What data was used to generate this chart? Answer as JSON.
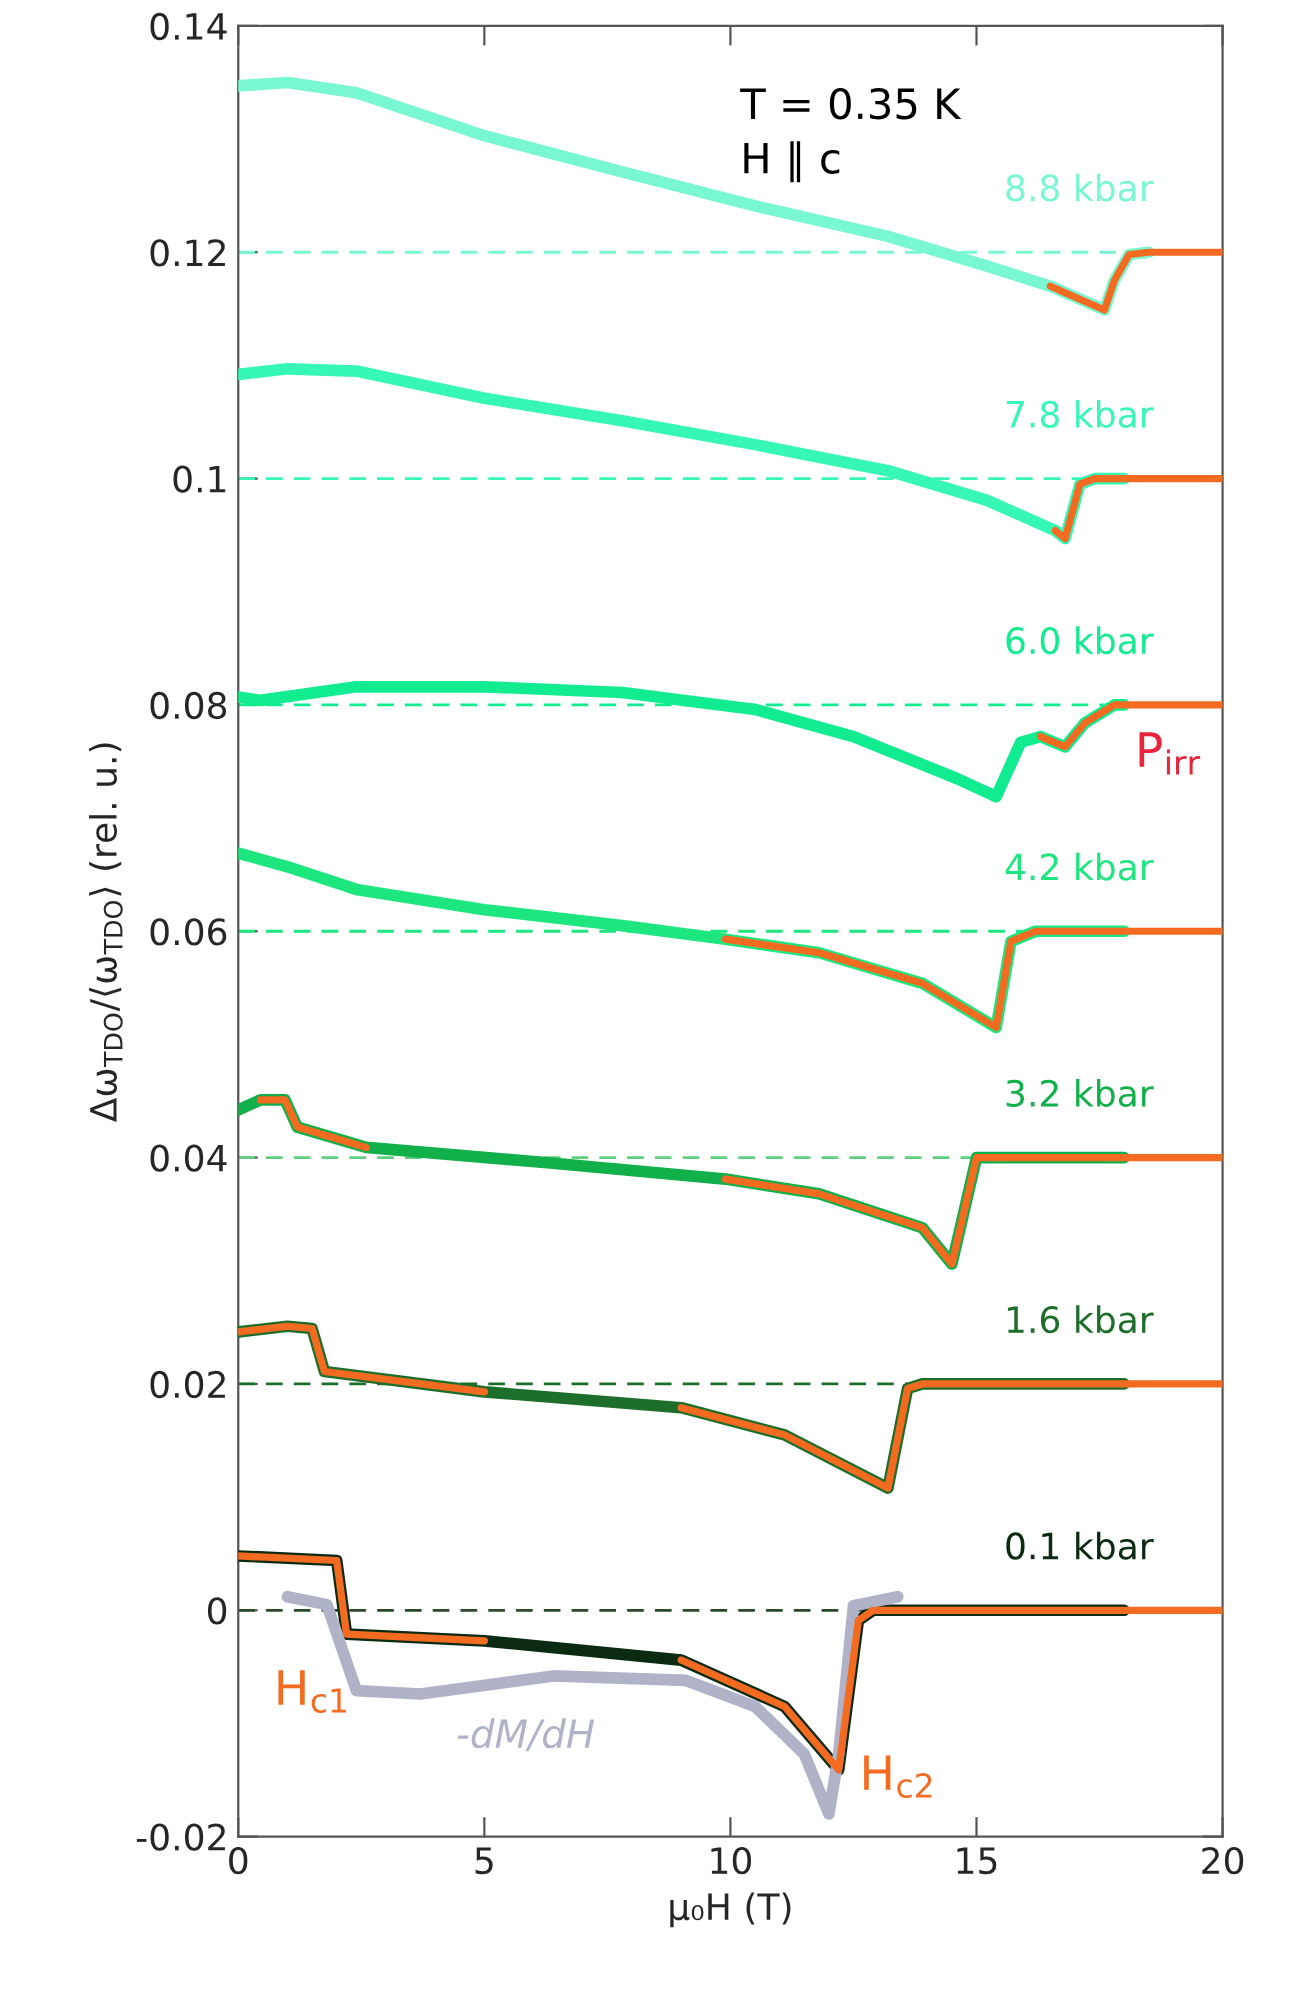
{
  "chart_data": {
    "type": "line",
    "xlabel": "μ₀H (T)",
    "ylabel": "Δω$_{TDO}$/⟨ω$_{TDO}$⟩ (rel. u.)",
    "xlim": [
      0,
      20
    ],
    "xticks": [
      0,
      5,
      10,
      15,
      20
    ],
    "ylim": [
      -0.02,
      0.14
    ],
    "yticks": [
      -0.02,
      0,
      0.02,
      0.04,
      0.06,
      0.08,
      0.1,
      0.12,
      0.14
    ],
    "line_style": "solid",
    "marker": "none",
    "annotations": [
      "T = 0.35 K",
      "H ∥ c",
      "H$_{c1}$",
      "H$_{c2}$",
      "P$_{irr}$"
    ],
    "ref_lines": [
      {
        "axis": "y",
        "value": 0.12,
        "color": "#78f7d2",
        "line_style": "dashed"
      },
      {
        "axis": "y",
        "value": 0.1,
        "color": "#36f7b4",
        "line_style": "dashed"
      },
      {
        "axis": "y",
        "value": 0.08,
        "color": "#12ec90",
        "line_style": "dashed"
      },
      {
        "axis": "y",
        "value": 0.06,
        "color": "#1ee67f",
        "line_style": "dashed"
      },
      {
        "axis": "y",
        "value": 0.04,
        "color": "#5fcf80",
        "line_style": "dashed"
      },
      {
        "axis": "y",
        "value": 0.02,
        "color": "#1d6e2a",
        "line_style": "dashed"
      },
      {
        "axis": "y",
        "value": 0,
        "color": "#2a4a2a",
        "line_style": "dashed"
      }
    ],
    "series": [
      {
        "name": "8.8 kbar",
        "color": "#78f7d2",
        "x": [
          0,
          1,
          2.4,
          5,
          7.8,
          10.5,
          13.2,
          15.2,
          16.5,
          17.6,
          17.8,
          18.1,
          18.5
        ],
        "values": [
          0.1347,
          0.135,
          0.1341,
          0.1303,
          0.1271,
          0.1241,
          0.1214,
          0.1188,
          0.117,
          0.1149,
          0.1175,
          0.1198,
          0.12
        ]
      },
      {
        "name": "7.8 kbar",
        "color": "#36f7b4",
        "x": [
          0,
          1,
          2.4,
          5,
          7.8,
          10.5,
          13.2,
          15.2,
          16.6,
          16.8,
          17.1,
          17.4,
          18
        ],
        "values": [
          0.1092,
          0.1097,
          0.1095,
          0.1071,
          0.1051,
          0.103,
          0.1007,
          0.0981,
          0.0954,
          0.0947,
          0.0995,
          0.1,
          0.1
        ]
      },
      {
        "name": "6.0 kbar",
        "color": "#12ec90",
        "x": [
          0,
          0.45,
          2.4,
          5,
          7.8,
          10.5,
          12.5,
          14.6,
          15.4,
          15.9,
          16.3,
          16.8,
          17.2,
          17.8,
          18
        ],
        "values": [
          0.0807,
          0.0804,
          0.0816,
          0.0816,
          0.0811,
          0.0796,
          0.0772,
          0.0735,
          0.0719,
          0.0767,
          0.0772,
          0.0763,
          0.0784,
          0.08,
          0.08
        ]
      },
      {
        "name": "4.2 kbar",
        "color": "#1ee67f",
        "x": [
          0,
          1,
          2.4,
          5,
          7.8,
          9.9,
          11.8,
          13.9,
          15.4,
          15.7,
          16.2,
          18
        ],
        "values": [
          0.0669,
          0.0657,
          0.0637,
          0.0619,
          0.0605,
          0.0593,
          0.0581,
          0.0554,
          0.0515,
          0.0591,
          0.06,
          0.06
        ]
      },
      {
        "name": "3.2 kbar",
        "color": "#12b04a",
        "x": [
          0,
          0.45,
          0.95,
          1.2,
          2.6,
          6.4,
          9.9,
          11.8,
          13.9,
          14.5,
          15.0,
          18
        ],
        "values": [
          0.0442,
          0.0451,
          0.0451,
          0.0427,
          0.0409,
          0.0395,
          0.0381,
          0.0368,
          0.0338,
          0.0306,
          0.04,
          0.04
        ]
      },
      {
        "name": "1.6 kbar",
        "color": "#1d6e2a",
        "x": [
          0,
          1,
          1.5,
          1.75,
          5,
          9,
          11.1,
          13.2,
          13.6,
          13.9,
          18
        ],
        "values": [
          0.0246,
          0.0251,
          0.0249,
          0.0211,
          0.0193,
          0.0179,
          0.0155,
          0.0108,
          0.0196,
          0.02,
          0.02
        ]
      },
      {
        "name": "0.1 kbar",
        "color": "#0b2a12",
        "x": [
          0,
          2,
          2.2,
          5,
          9,
          11.1,
          12.2,
          12.6,
          12.9,
          18
        ],
        "values": [
          0.0048,
          0.0044,
          -0.0021,
          -0.0027,
          -0.0044,
          -0.0085,
          -0.0141,
          -0.0009,
          0,
          0
        ]
      },
      {
        "name": "-dM/dH",
        "color": "#b0b3c8",
        "x": [
          1,
          1.8,
          2.4,
          3.7,
          6.4,
          9.1,
          10.5,
          11.5,
          12.0,
          12.2,
          12.5,
          13.4
        ],
        "values": [
          0.0012,
          0.0005,
          -0.0071,
          -0.0074,
          -0.0058,
          -0.0062,
          -0.0085,
          -0.0127,
          -0.018,
          -0.0127,
          0.0004,
          0.0012
        ]
      },
      {
        "color": "#f26b21",
        "x": [
          16.5,
          17.6,
          17.8,
          18.1,
          18.5,
          20
        ],
        "values": [
          0.117,
          0.1149,
          0.1175,
          0.1198,
          0.12,
          0.12
        ]
      },
      {
        "color": "#f26b21",
        "x": [
          16.6,
          16.8,
          17.1,
          17.4,
          18,
          20
        ],
        "values": [
          0.0954,
          0.0947,
          0.0995,
          0.1,
          0.1,
          0.1
        ]
      },
      {
        "color": "#f26b21",
        "x": [
          16.3,
          16.8,
          17.2,
          17.8,
          20
        ],
        "values": [
          0.0772,
          0.0763,
          0.0784,
          0.08,
          0.08
        ]
      },
      {
        "color": "#f26b21",
        "x": [
          9.9,
          11.8,
          13.9,
          15.4,
          15.7,
          16.2,
          20
        ],
        "values": [
          0.0593,
          0.0581,
          0.0554,
          0.0515,
          0.0591,
          0.06,
          0.06
        ]
      },
      {
        "color": "#f26b21",
        "x": [
          0.45,
          0.95,
          1.2,
          2.6,
          6.4,
          9.9,
          11.8,
          13.9,
          14.5,
          15.0,
          20
        ],
        "values": [
          0.0451,
          0.0451,
          0.0427,
          0.0409,
          null,
          0.0381,
          0.0368,
          0.0338,
          0.0306,
          0.04,
          0.04
        ]
      },
      {
        "color": "#f26b21",
        "x": [
          0,
          1,
          1.5,
          1.75,
          5,
          7,
          9,
          11.1,
          13.2,
          13.6,
          13.9,
          20
        ],
        "values": [
          0.0246,
          0.0251,
          0.0249,
          0.0211,
          0.0193,
          null,
          0.0179,
          0.0155,
          0.0108,
          0.0196,
          0.02,
          0.02
        ]
      },
      {
        "color": "#f26b21",
        "x": [
          0,
          2,
          2.2,
          5,
          7,
          9,
          11.1,
          12.2,
          12.6,
          12.9,
          20
        ],
        "values": [
          0.0048,
          0.0044,
          -0.0021,
          -0.0027,
          null,
          -0.0044,
          -0.0085,
          -0.0141,
          -0.0009,
          0,
          0
        ]
      }
    ]
  }
}
